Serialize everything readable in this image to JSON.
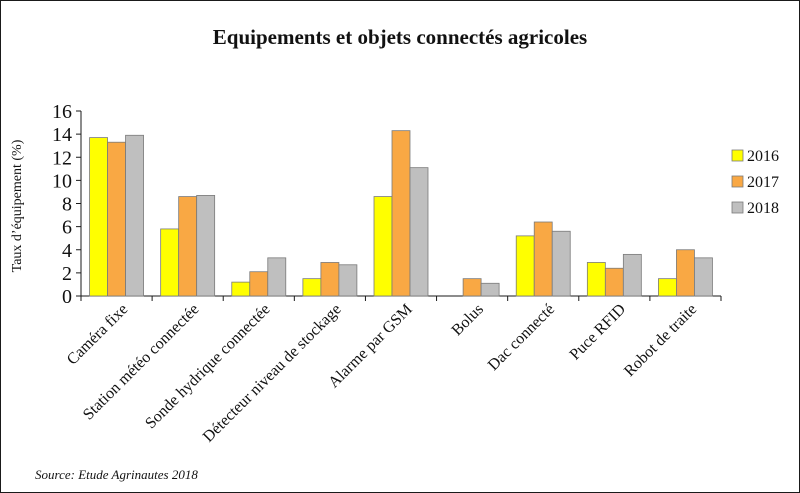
{
  "chart_data": {
    "type": "bar",
    "title": "Equipements et objets connectés agricoles",
    "ylabel": "Taux d’équipement (%)",
    "xlabel": "",
    "ylim": [
      0,
      16
    ],
    "yticks": [
      0,
      2,
      4,
      6,
      8,
      10,
      12,
      14,
      16
    ],
    "grid": false,
    "legend_position": "right",
    "categories": [
      "Caméra fixe",
      "Station météo connectée",
      "Sonde hydrique connectée",
      "Détecteur niveau de stockage",
      "Alarme par GSM",
      "Bolus",
      "Dac connecté",
      "Puce RFID",
      "Robot de traite"
    ],
    "series": [
      {
        "name": "2016",
        "color": "#ffff00",
        "values": [
          13.7,
          5.8,
          1.2,
          1.5,
          8.6,
          null,
          5.2,
          2.9,
          1.5
        ]
      },
      {
        "name": "2017",
        "color": "#f9a844",
        "values": [
          13.3,
          8.6,
          2.1,
          2.9,
          14.3,
          1.5,
          6.4,
          2.4,
          4.0
        ]
      },
      {
        "name": "2018",
        "color": "#bfbfbf",
        "values": [
          13.9,
          8.7,
          3.3,
          2.7,
          11.1,
          1.1,
          5.6,
          3.6,
          3.3
        ]
      }
    ]
  },
  "source": "Source: Etude Agrinautes 2018"
}
